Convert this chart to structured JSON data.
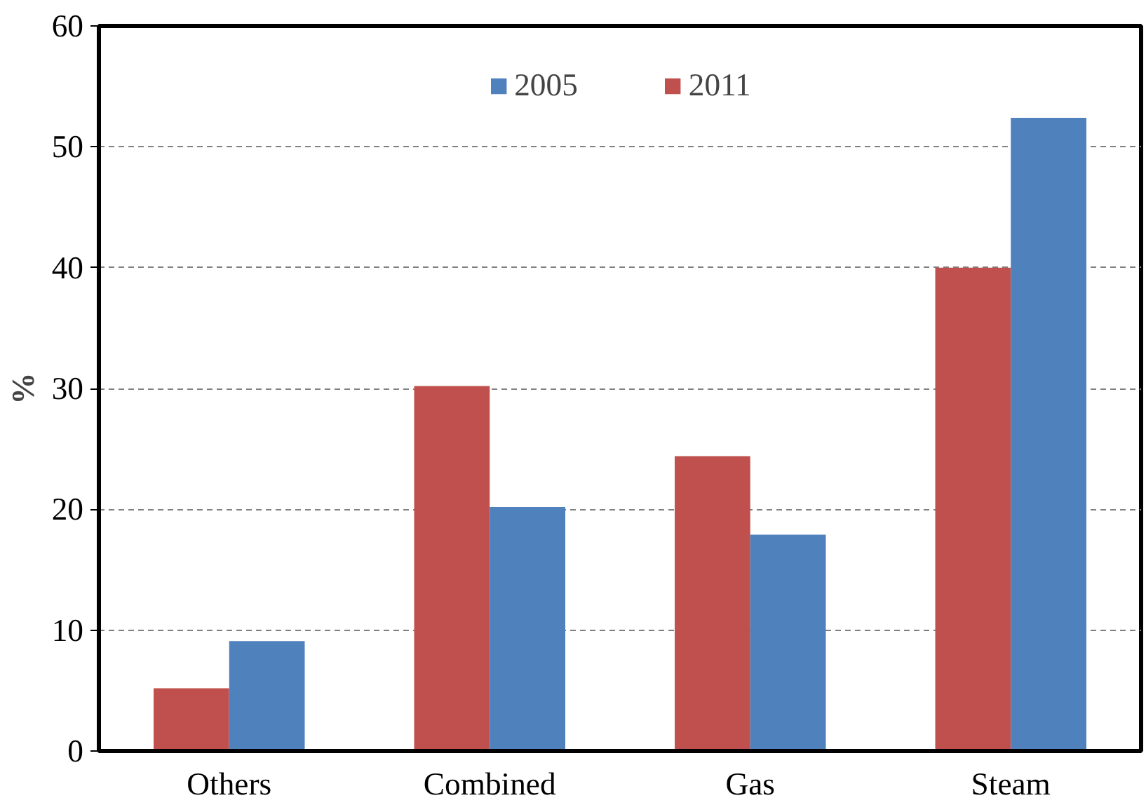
{
  "chart_data": {
    "type": "bar",
    "ylabel": "%",
    "categories": [
      "Others",
      "Combined",
      "Gas",
      "Steam"
    ],
    "series": [
      {
        "name": "2011",
        "color": "#c0504d",
        "values": [
          5.2,
          30.2,
          24.4,
          40.0
        ]
      },
      {
        "name": "2005",
        "color": "#4f81bd",
        "values": [
          9.1,
          20.2,
          17.9,
          52.4
        ]
      }
    ],
    "ylim": [
      0,
      60
    ],
    "yticks": [
      0,
      10,
      20,
      30,
      40,
      50,
      60
    ],
    "grid": "y",
    "legend": "top"
  }
}
